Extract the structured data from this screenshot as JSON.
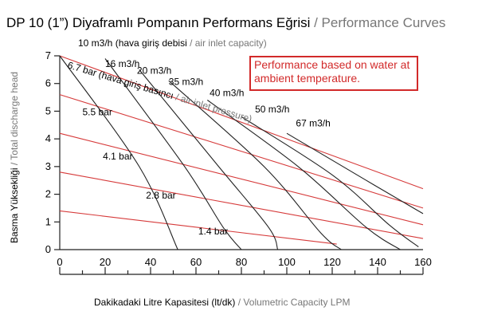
{
  "chart_data": {
    "type": "line",
    "title_main": "DP 10 (1”) Diyaframlı Pompanın Performans Eğrisi",
    "title_sep": " / ",
    "title_en": "Performance Curves",
    "xlabel_tr": "Dakikadaki Litre Kapasitesi (lt/dk)",
    "xlabel_sep": " / ",
    "xlabel_en": "Volumetric Capacity LPM",
    "ylabel_tr": "Basma Yüksekliği",
    "ylabel_sep": " / ",
    "ylabel_en": "Total discharge head",
    "air_label_tr": "10 m3/h (hava giriş debisi",
    "air_label_sep": " / ",
    "air_label_en": "air inlet capacity)",
    "pressure_label_tr": "6.7 bar (hava giriş basıncı",
    "pressure_label_sep": " / ",
    "pressure_label_en": "air inlet pressure)",
    "note": "Performance based on water at ambient temperature.",
    "xlim": [
      0,
      160
    ],
    "ylim": [
      0,
      7
    ],
    "x_ticks": [
      0,
      20,
      40,
      60,
      80,
      100,
      120,
      140,
      160
    ],
    "y_ticks": [
      0,
      1,
      2,
      3,
      4,
      5,
      6,
      7
    ],
    "pressure_curves": [
      {
        "name": "6.7 bar",
        "points": [
          [
            0,
            7.0
          ],
          [
            160,
            2.2
          ]
        ]
      },
      {
        "name": "5.5 bar",
        "points": [
          [
            0,
            5.6
          ],
          [
            160,
            1.5
          ]
        ]
      },
      {
        "name": "4.1 bar",
        "points": [
          [
            0,
            4.2
          ],
          [
            160,
            0.9
          ]
        ]
      },
      {
        "name": "2.8 bar",
        "points": [
          [
            0,
            2.8
          ],
          [
            160,
            0.4
          ]
        ]
      },
      {
        "name": "1.4 bar",
        "points": [
          [
            0,
            1.4
          ],
          [
            122,
            0.2
          ]
        ]
      }
    ],
    "air_capacity_curves": [
      {
        "name": "10 m3/h",
        "points": [
          [
            0,
            7.0
          ],
          [
            35,
            3.0
          ],
          [
            52,
            0.0
          ]
        ]
      },
      {
        "name": "16 m3/h",
        "points": [
          [
            20,
            6.9
          ],
          [
            55,
            3.0
          ],
          [
            72,
            0.8
          ],
          [
            80,
            0.0
          ]
        ]
      },
      {
        "name": "20 m3/h",
        "points": [
          [
            35,
            6.5
          ],
          [
            70,
            3.0
          ],
          [
            92,
            0.8
          ],
          [
            96,
            0.0
          ]
        ]
      },
      {
        "name": "35 m3/h",
        "points": [
          [
            48,
            6.1
          ],
          [
            90,
            3.0
          ],
          [
            115,
            0.6
          ],
          [
            124,
            0.0
          ]
        ]
      },
      {
        "name": "40 m3/h",
        "points": [
          [
            65,
            5.4
          ],
          [
            105,
            3.0
          ],
          [
            135,
            0.8
          ],
          [
            150,
            0.0
          ]
        ]
      },
      {
        "name": "50 m3/h",
        "points": [
          [
            80,
            4.8
          ],
          [
            120,
            2.7
          ],
          [
            145,
            0.9
          ],
          [
            158,
            0.1
          ]
        ]
      },
      {
        "name": "67 m3/h",
        "points": [
          [
            100,
            4.2
          ],
          [
            135,
            2.5
          ],
          [
            160,
            1.3
          ]
        ]
      }
    ],
    "labels": [
      {
        "text": "16 m3/h",
        "x": 20,
        "y": 6.6
      },
      {
        "text": "20 m3/h",
        "x": 34,
        "y": 6.35
      },
      {
        "text": "35 m3/h",
        "x": 48,
        "y": 5.95
      },
      {
        "text": "40 m3/h",
        "x": 66,
        "y": 5.55
      },
      {
        "text": "50 m3/h",
        "x": 86,
        "y": 4.95
      },
      {
        "text": "67 m3/h",
        "x": 104,
        "y": 4.45
      },
      {
        "text": "5.5 bar",
        "x": 10,
        "y": 4.85
      },
      {
        "text": "4.1 bar",
        "x": 19,
        "y": 3.25
      },
      {
        "text": "2.8 bar",
        "x": 38,
        "y": 1.85
      },
      {
        "text": "1.4 bar",
        "x": 61,
        "y": 0.55
      }
    ],
    "colors": {
      "pressure": "#d63a3a",
      "air": "#222222",
      "note_border": "#d22a2a"
    }
  }
}
